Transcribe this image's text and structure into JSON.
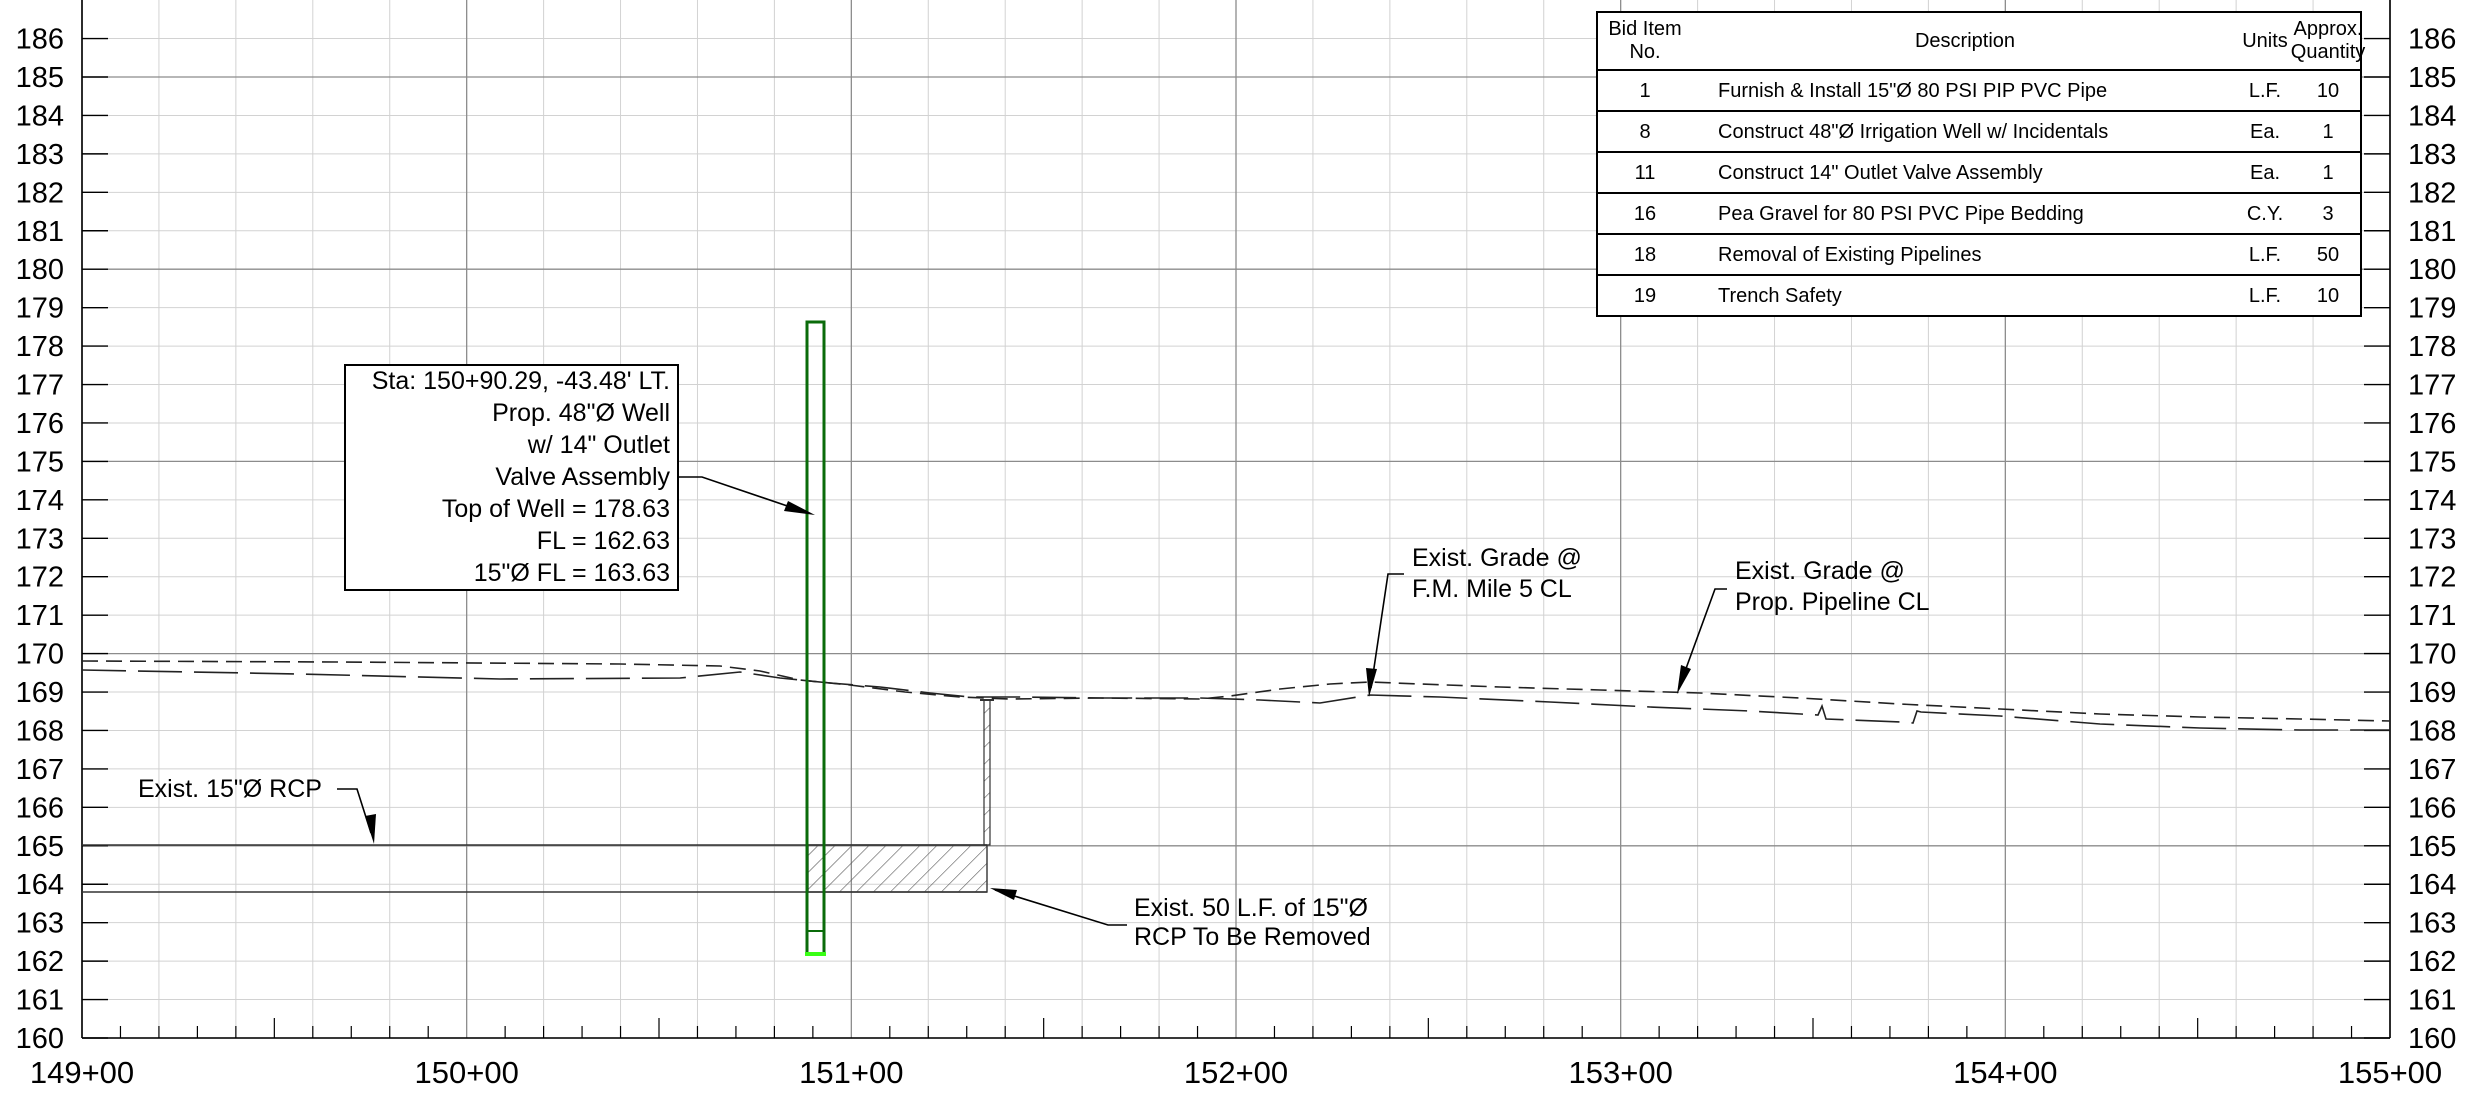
{
  "profile": {
    "elevation_labels": [
      "160",
      "161",
      "162",
      "163",
      "164",
      "165",
      "166",
      "167",
      "168",
      "169",
      "170",
      "171",
      "172",
      "173",
      "174",
      "175",
      "176",
      "177",
      "178",
      "179",
      "180",
      "181",
      "182",
      "183",
      "184",
      "185",
      "186"
    ],
    "station_labels": [
      "149+00",
      "150+00",
      "151+00",
      "152+00",
      "153+00",
      "154+00",
      "155+00"
    ]
  },
  "callouts": {
    "well": [
      "Sta: 150+90.29, -43.48' LT.",
      "Prop. 48\"Ø Well",
      "w/ 14\" Outlet",
      "Valve Assembly",
      "Top of Well = 178.63",
      "FL = 162.63",
      "15\"Ø FL = 163.63"
    ],
    "rcp": "Exist. 15\"Ø RCP",
    "remove": [
      "Exist. 50 L.F. of 15\"Ø",
      "RCP To Be Removed"
    ],
    "grade_fm": [
      "Exist. Grade @",
      "F.M. Mile 5 CL"
    ],
    "grade_pipe": [
      "Exist. Grade @",
      "Prop. Pipeline CL"
    ]
  },
  "bid_table": {
    "headers": {
      "no": "Bid Item No.",
      "description": "Description",
      "units": "Units",
      "quantity": "Approx. Quantity"
    },
    "rows": [
      {
        "no": "1",
        "description": "Furnish & Install 15\"Ø 80 PSI PIP PVC Pipe",
        "units": "L.F.",
        "quantity": "10"
      },
      {
        "no": "8",
        "description": "Construct 48\"Ø Irrigation Well w/ Incidentals",
        "units": "Ea.",
        "quantity": "1"
      },
      {
        "no": "11",
        "description": "Construct 14\" Outlet Valve Assembly",
        "units": "Ea.",
        "quantity": "1"
      },
      {
        "no": "16",
        "description": "Pea Gravel for 80 PSI PVC Pipe Bedding",
        "units": "C.Y.",
        "quantity": "3"
      },
      {
        "no": "18",
        "description": "Removal of Existing Pipelines",
        "units": "L.F.",
        "quantity": "50"
      },
      {
        "no": "19",
        "description": "Trench Safety",
        "units": "L.F.",
        "quantity": "10"
      }
    ]
  },
  "colors": {
    "well_outline": "#0a6b0a",
    "well_bottom": "#39ff14",
    "grid_major": "#8c8c8c",
    "grid_minor": "#d2d2d2"
  }
}
